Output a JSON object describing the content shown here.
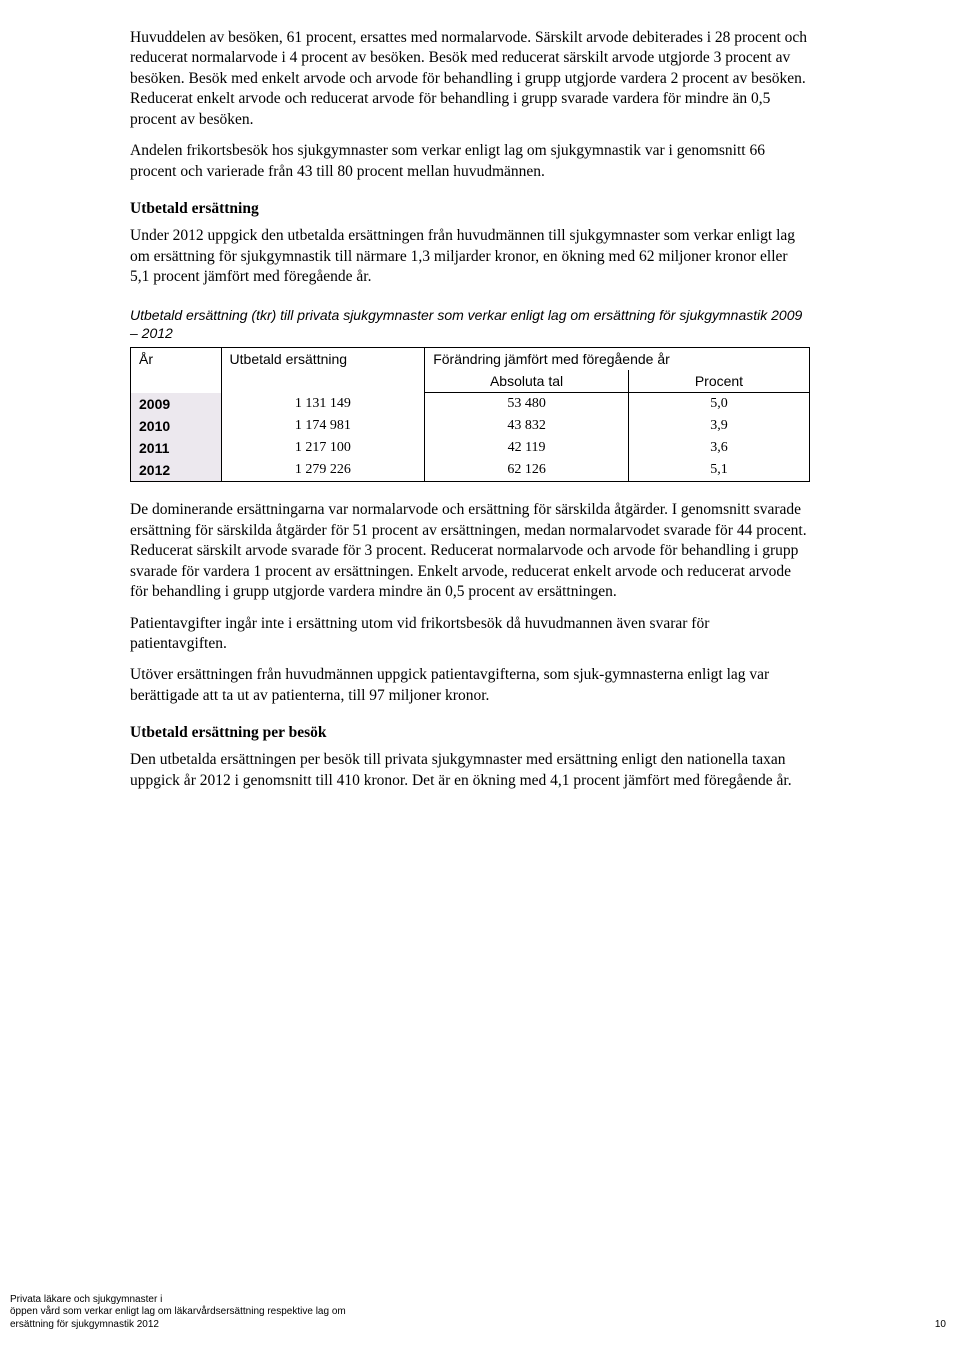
{
  "paragraphs": {
    "p1": "Huvuddelen av besöken, 61 procent, ersattes med normalarvode. Särskilt arvode debiterades i 28 procent och reducerat normalarvode i 4 procent av besöken. Besök med reducerat särskilt arvode utgjorde 3 procent av besöken. Besök med enkelt arvode och arvode för behandling i grupp utgjorde vardera 2 procent av besöken. Reducerat enkelt arvode och reducerat arvode för behandling i grupp svarade vardera för mindre än 0,5 procent av besöken.",
    "p2": "Andelen frikortsbesök hos sjukgymnaster som verkar enligt lag om sjukgymnastik var i genomsnitt 66 procent och varierade från 43 till 80 procent mellan huvudmännen.",
    "h1": "Utbetald ersättning",
    "p3": "Under 2012 uppgick den utbetalda ersättningen från huvudmännen till sjukgymnaster som verkar enligt lag om ersättning för sjukgymnastik till närmare 1,3 miljarder kronor, en ökning med 62 miljoner kronor eller 5,1 procent jämfört med föregående år.",
    "caption": "Utbetald ersättning (tkr) till privata sjukgymnaster som verkar enligt lag om ersättning för sjukgymnastik 2009 – 2012",
    "p4": "De dominerande ersättningarna var normalarvode och ersättning för särskilda åtgärder. I genomsnitt svarade ersättning för särskilda åtgärder för 51 procent av ersättningen, medan normalarvodet svarade för 44 procent. Reducerat särskilt arvode svarade för 3 procent. Reducerat normalarvode och arvode för behandling i grupp svarade för vardera 1 procent av ersättningen. Enkelt arvode, reducerat enkelt arvode och reducerat arvode för behandling i grupp utgjorde vardera mindre än 0,5 procent av ersättningen.",
    "p5": "Patientavgifter ingår inte i ersättning utom vid frikortsbesök då huvudmannen även svarar för patientavgiften.",
    "p6": "Utöver ersättningen från huvudmännen uppgick patientavgifterna, som sjuk-gymnasterna enligt lag var berättigade att ta ut av patienterna, till 97 miljoner kronor.",
    "h2": "Utbetald ersättning per besök",
    "p7": "Den utbetalda ersättningen per besök till privata sjukgymnaster med ersättning enligt den nationella taxan uppgick år 2012 i genomsnitt till 410 kronor. Det är en ökning med 4,1 procent jämfört med föregående år."
  },
  "table": {
    "headers": {
      "year": "År",
      "utb": "Utbetald ersättning",
      "change": "Förändring jämfört med föregående år",
      "abs": "Absoluta tal",
      "pct": "Procent"
    },
    "rows": [
      {
        "year": "2009",
        "utb": "1 131 149",
        "abs": "53 480",
        "pct": "5,0"
      },
      {
        "year": "2010",
        "utb": "1 174 981",
        "abs": "43 832",
        "pct": "3,9"
      },
      {
        "year": "2011",
        "utb": "1 217 100",
        "abs": "42 119",
        "pct": "3,6"
      },
      {
        "year": "2012",
        "utb": "1 279 226",
        "abs": "62 126",
        "pct": "5,1"
      }
    ],
    "year_bg": "#ece8ee",
    "border_color": "#000000"
  },
  "footer": {
    "left": "Privata läkare och sjukgymnaster i\nöppen vård som verkar enligt lag om läkarvårdsersättning respektive lag om\nersättning för sjukgymnastik 2012",
    "page": "10"
  }
}
